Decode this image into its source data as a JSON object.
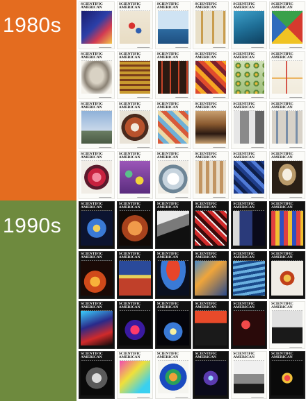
{
  "decades": [
    {
      "label": "1980s",
      "color": "#e46c1f"
    },
    {
      "label": "1990s",
      "color": "#6e8a3e"
    }
  ],
  "masthead": "SCIENTIFIC\nAMERICAN",
  "covers": [
    {
      "art": "linear-gradient(135deg,#1b1e6e 0%,#2c3fa8 45%,#d23a52 70%,#f1c44a 100%)"
    },
    {
      "art": "radial-gradient(circle at 40% 45%,#d8322f 0 12%,transparent 13%),radial-gradient(circle at 62% 60%,#2f5fb0 0 10%,transparent 11%),linear-gradient(#efe7d6,#e8dcc3)"
    },
    {
      "art": "linear-gradient(180deg,#cfe3f3 0%,#cfe3f3 55%,#2c6aa0 56%,#1e4f80 100%)"
    },
    {
      "art": "repeating-linear-gradient(90deg,#e8dfc8 0 8px,#c99d4e 8px 11px,#e8dfc8 11px 16px)"
    },
    {
      "art": "linear-gradient(160deg,#3ea0c9 0%,#1f6f97 50%,#0e3f5e 100%)"
    },
    {
      "art": "conic-gradient(from 45deg,#d63a2e 0 25%,#f0c323 0 50%,#2f6bbd 0 75%,#39a04a 0)"
    },
    {
      "art": "radial-gradient(ellipse at 50% 45%,#d9d2c4 0 30%,#8b8275 55%,#f4f1ea 80%)"
    },
    {
      "art": "repeating-linear-gradient(0deg,#c99a2f 0 4px,#7b3d1a 4px 7px),linear-gradient(#b57a2a,#b57a2a)"
    },
    {
      "art": "repeating-linear-gradient(90deg,#2b1a12 0 5px,#c9452a 5px 7px,#2b1a12 7px 12px)"
    },
    {
      "art": "repeating-linear-gradient(45deg,#e04b2c 0 6px,#f6a623 6px 12px,#7a1f2e 12px 18px)"
    },
    {
      "art": "radial-gradient(circle,#e9b93a 0 22%,#5c8a3a 23% 45%,transparent 46%) 0 0/13px 13px,linear-gradient(#cfe0b5,#9fbf7a)"
    },
    {
      "art": "linear-gradient(90deg,transparent 45%,#d2453a 46% 49%,transparent 50%),linear-gradient(0deg,transparent 45%,#e9a33a 46% 49%,transparent 50%),linear-gradient(#f7f3ea,#f1ebdc)"
    },
    {
      "art": "linear-gradient(180deg,#8fb1d8 0%,#c9d8ea 60%,#6a7d63 61%,#4a5a44 100%)"
    },
    {
      "art": "radial-gradient(circle at 50% 50%,#f2e9dc 0 18%,#b7522c 19% 44%,#4a2a1d 45% 60%,#e9e3d7 61%)"
    },
    {
      "art": "repeating-linear-gradient(45deg,#d85a3a 0 6px,#6fb0d6 6px 12px,#ecd9a6 12px 18px)"
    },
    {
      "art": "linear-gradient(180deg,#c9a070 0%,#8a5a30 40%,#2b1a12 70%,#c9a070 100%)"
    },
    {
      "art": "linear-gradient(90deg,#e6e6e6 0 20%,#8a8a8a 20% 50%,#e6e6e6 50% 70%,#666 70%)"
    },
    {
      "art": "repeating-linear-gradient(90deg,#d8d2c8 0 6px,#7a8fa8 6px 9px,#d8d2c8 9px 14px)"
    },
    {
      "art": "radial-gradient(circle at 50% 50%,#f38aa0 0 20%,#c7213f 21% 40%,#5a1a2c 41% 55%,#f1ede6 56%)"
    },
    {
      "art": "radial-gradient(circle at 30% 40%,#5ac18a 0 12%,transparent 13%),radial-gradient(circle at 65% 60%,#f2d43a 0 14%,transparent 15%),linear-gradient(#9b56b8,#5a2c7e)"
    },
    {
      "art": "radial-gradient(circle at 50% 55%,#ffffff 0 25%,#c7d4de 26% 45%,#6d8596 46% 60%,#f0ede6 61%)"
    },
    {
      "art": "repeating-linear-gradient(90deg,#e8dcc8 0 5px,#c29562 5px 10px)"
    },
    {
      "art": "repeating-linear-gradient(45deg,#1f3d8a 0 5px,#4f7ad6 5px 10px,#0e1f4a 10px 15px)"
    },
    {
      "art": "radial-gradient(ellipse at 50% 42%,#f6efe2 0 22%,#b99a6a 23% 40%,#2a2016 41% 100%)"
    },
    {
      "dark": true,
      "art": "radial-gradient(circle at 50% 50%,#f0d05a 0 15%,#3a7ad6 16% 40%,#0c1430 41%)"
    },
    {
      "dark": true,
      "art": "radial-gradient(circle at 50% 50%,#f09a4a 0 30%,#a8421c 31% 55%,#120a06 56%)"
    },
    {
      "dark": true,
      "art": "linear-gradient(160deg,#eaeaea 0 30%,#7a7a7a 31% 55%,#101010 56%)"
    },
    {
      "dark": true,
      "art": "repeating-linear-gradient(45deg,#d12a2a 0 5px,#f2f2f2 5px 7px,#3a0a0a 7px 12px)"
    },
    {
      "dark": true,
      "art": "linear-gradient(90deg,#d9d9d9 0 20%,#2a3a7a 21% 60%,#0a0a1a 61%)"
    },
    {
      "dark": true,
      "art": "repeating-linear-gradient(90deg,#e04040 0 6px,#f0c030 6px 12px,#3050c0 12px 18px)"
    },
    {
      "dark": true,
      "art": "radial-gradient(circle at 45% 60%,#f7b23a 0 18%,#d04a1a 19% 40%,#1a0a06 41%)"
    },
    {
      "dark": true,
      "art": "linear-gradient(180deg,#2a4a9a 0 40%,#e6d05a 41% 50%,#c0402a 51% 100%)"
    },
    {
      "dark": true,
      "art": "radial-gradient(ellipse at 50% 25%,#e8452a 0 30%,#3a7ad6 31% 55%,#0a1020 56%)"
    },
    {
      "dark": true,
      "art": "linear-gradient(135deg,#4a8ac8 0%,#f0a53a 40%,#2a4a8a 100%)"
    },
    {
      "dark": true,
      "art": "repeating-linear-gradient(170deg,#6ab0e0 0 4px,#1a4a8a 4px 8px)"
    },
    {
      "dark": true,
      "art": "radial-gradient(circle at 50% 50%,#f0c24a 0 15%,#c0401a 16% 30%,#f0ede6 31%)"
    },
    {
      "dark": true,
      "art": "linear-gradient(160deg,#3ad0ff 0%,#2a2a8a 40%,#d02a2a 70%,#0a0a0a 100%)"
    },
    {
      "dark": true,
      "art": "radial-gradient(circle at 50% 55%,#ff3a6a 0 18%,#3a1aa0 19% 40%,#0a0a0a 41%)"
    },
    {
      "dark": true,
      "art": "radial-gradient(circle at 50% 60%,#f7f0a0 0 12%,#3a7ad6 13% 35%,#05050a 36%)"
    },
    {
      "dark": true,
      "art": "linear-gradient(180deg,#e84a2a 0 35%,#1a1a1a 36%)"
    },
    {
      "dark": true,
      "art": "radial-gradient(circle at 40% 40%,#f04a4a 0 15%,#2a0a0a 16%)"
    },
    {
      "art": "linear-gradient(180deg,#e0e0e0 0 50%,#1a1a1a 51%)"
    },
    {
      "dark": true,
      "art": "radial-gradient(circle at 50% 50%,#dcdcdc 0 20%,#5a5a5a 21% 45%,#0a0a0a 46%)"
    },
    {
      "art": "linear-gradient(135deg,#f04ab0 0%,#f0e03a 40%,#3ad0f0 80%)"
    },
    {
      "art": "radial-gradient(circle at 50% 50%,#f0a03a 0 18%,#2aa05a 19% 35%,#1a4ac0 36% 60%,#f5f5f0 61%)"
    },
    {
      "dark": true,
      "art": "radial-gradient(circle at 50% 50%,#9ad8ff 0 10%,#5a3ab0 11% 30%,#0a0a1a 31%)"
    },
    {
      "art": "linear-gradient(180deg,#f0f0f0 0 40%,#8a8a8a 41% 70%,#1a1a1a 71%)"
    },
    {
      "dark": true,
      "art": "radial-gradient(circle at 50% 50%,#f04a4a 0 12%,#f0c03a 13% 22%,#0a0a0a 23%)"
    }
  ]
}
